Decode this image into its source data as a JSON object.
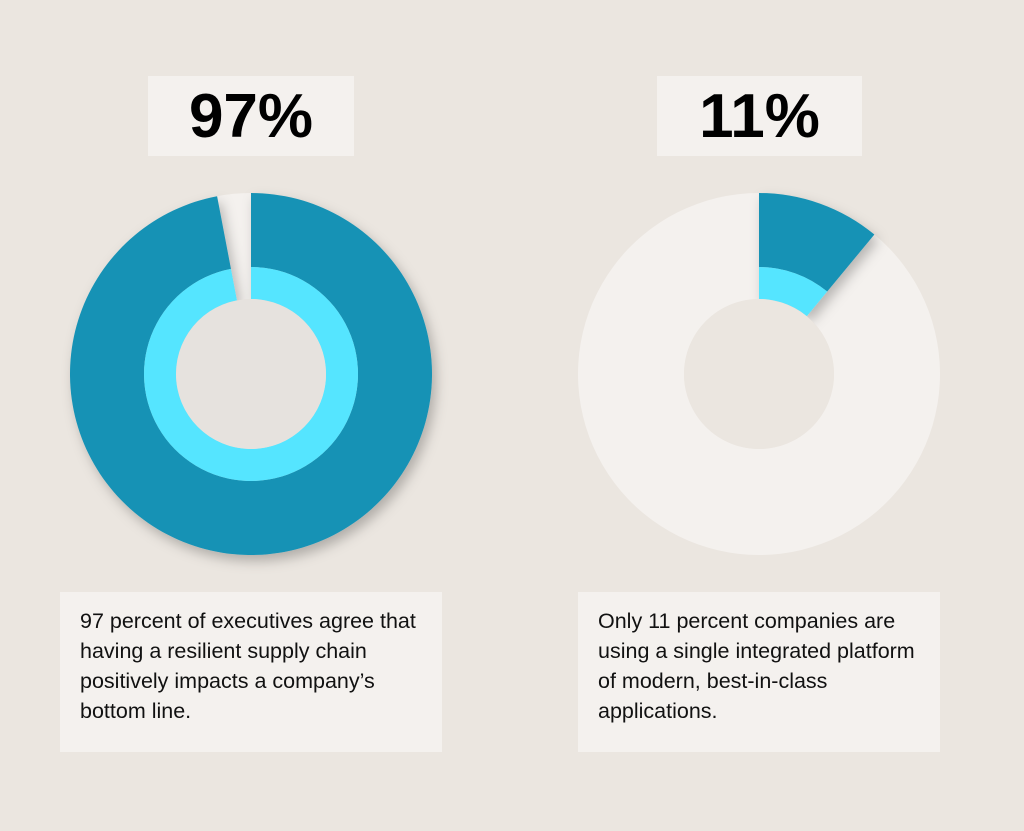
{
  "colors": {
    "background": "#ebe6e0",
    "panel": "#f4f1ee",
    "primary": "#1592b5",
    "accent": "#55e5ff"
  },
  "chart_data": [
    {
      "type": "pie",
      "variant": "donut",
      "title": "97%",
      "values": [
        97,
        3
      ],
      "caption": "97 percent of executives agree that having a resilient supply chain positively impacts a company’s bottom line."
    },
    {
      "type": "pie",
      "variant": "donut",
      "title": "11%",
      "values": [
        11,
        89
      ],
      "caption": "Only 11 percent companies are using a single integrated platform of modern, best-in-class applications."
    }
  ]
}
